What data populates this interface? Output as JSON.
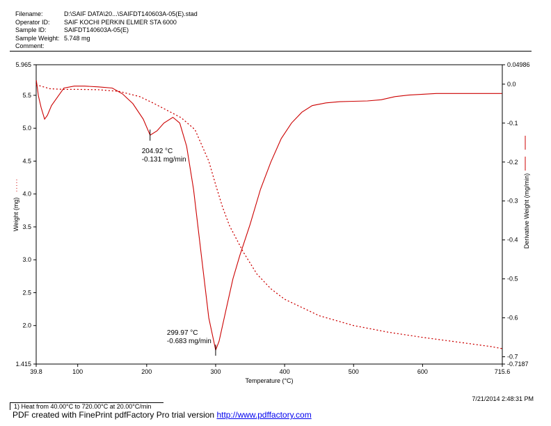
{
  "header": {
    "rows": [
      {
        "key": "Filename:",
        "value": "D:\\SAIF DATA\\20...\\SAIFDT140603A-05(E).stad"
      },
      {
        "key": "Operator ID:",
        "value": "SAIF KOCHI  PERKIN ELMER STA 6000"
      },
      {
        "key": "Sample ID:",
        "value": "SAIFDT140603A-05(E)"
      },
      {
        "key": "Sample Weight:",
        "value": "5.748 mg"
      },
      {
        "key": "Comment:",
        "value": ""
      }
    ]
  },
  "chart_data": {
    "type": "line",
    "xlabel": "Temperature (°C)",
    "ylabel_left": "Weight (mg)",
    "ylabel_right": "Derivative Weight (mg/min)",
    "xlim": [
      39.8,
      715.6
    ],
    "ylim_left": [
      1.415,
      5.965
    ],
    "ylim_right": [
      -0.7187,
      0.04986
    ],
    "x_ticks": [
      {
        "v": 39.8,
        "label": "39.8"
      },
      {
        "v": 100,
        "label": "100"
      },
      {
        "v": 200,
        "label": "200"
      },
      {
        "v": 300,
        "label": "300"
      },
      {
        "v": 400,
        "label": "400"
      },
      {
        "v": 500,
        "label": "500"
      },
      {
        "v": 600,
        "label": "600"
      },
      {
        "v": 715.6,
        "label": "715.6"
      }
    ],
    "y_left_ticks": [
      {
        "v": 5.965,
        "label": "5.965"
      },
      {
        "v": 5.5,
        "label": "5.5"
      },
      {
        "v": 5.0,
        "label": "5.0"
      },
      {
        "v": 4.5,
        "label": "4.5"
      },
      {
        "v": 4.0,
        "label": "4.0"
      },
      {
        "v": 3.5,
        "label": "3.5"
      },
      {
        "v": 3.0,
        "label": "3.0"
      },
      {
        "v": 2.5,
        "label": "2.5"
      },
      {
        "v": 2.0,
        "label": "2.0"
      },
      {
        "v": 1.415,
        "label": "1.415"
      }
    ],
    "y_right_ticks": [
      {
        "v": 0.04986,
        "label": "0.04986"
      },
      {
        "v": 0.0,
        "label": "0.0"
      },
      {
        "v": -0.1,
        "label": "-0.1"
      },
      {
        "v": -0.2,
        "label": "-0.2"
      },
      {
        "v": -0.3,
        "label": "-0.3"
      },
      {
        "v": -0.4,
        "label": "-0.4"
      },
      {
        "v": -0.5,
        "label": "-0.5"
      },
      {
        "v": -0.6,
        "label": "-0.6"
      },
      {
        "v": -0.7,
        "label": "-0.7"
      },
      {
        "v": -0.7187,
        "label": "-0.7187"
      }
    ],
    "series": [
      {
        "axis": "left",
        "style": "dotted",
        "color": "#cc0000",
        "points": [
          [
            40,
            5.66
          ],
          [
            60,
            5.6
          ],
          [
            80,
            5.59
          ],
          [
            100,
            5.59
          ],
          [
            130,
            5.585
          ],
          [
            160,
            5.56
          ],
          [
            190,
            5.48
          ],
          [
            210,
            5.38
          ],
          [
            230,
            5.27
          ],
          [
            250,
            5.16
          ],
          [
            270,
            4.98
          ],
          [
            290,
            4.5
          ],
          [
            300,
            4.14
          ],
          [
            310,
            3.8
          ],
          [
            320,
            3.52
          ],
          [
            340,
            3.12
          ],
          [
            360,
            2.78
          ],
          [
            380,
            2.56
          ],
          [
            400,
            2.4
          ],
          [
            450,
            2.15
          ],
          [
            500,
            2.0
          ],
          [
            550,
            1.9
          ],
          [
            600,
            1.82
          ],
          [
            650,
            1.75
          ],
          [
            700,
            1.68
          ],
          [
            715,
            1.65
          ]
        ]
      },
      {
        "axis": "right",
        "style": "solid",
        "color": "#cc0000",
        "points": [
          [
            40,
            0.01
          ],
          [
            43,
            -0.03
          ],
          [
            47,
            -0.06
          ],
          [
            52,
            -0.09
          ],
          [
            56,
            -0.08
          ],
          [
            62,
            -0.055
          ],
          [
            72,
            -0.03
          ],
          [
            80,
            -0.01
          ],
          [
            95,
            -0.005
          ],
          [
            110,
            -0.005
          ],
          [
            130,
            -0.007
          ],
          [
            150,
            -0.01
          ],
          [
            165,
            -0.025
          ],
          [
            180,
            -0.05
          ],
          [
            195,
            -0.09
          ],
          [
            205,
            -0.131
          ],
          [
            215,
            -0.12
          ],
          [
            225,
            -0.1
          ],
          [
            238,
            -0.085
          ],
          [
            248,
            -0.1
          ],
          [
            258,
            -0.16
          ],
          [
            268,
            -0.27
          ],
          [
            280,
            -0.45
          ],
          [
            290,
            -0.6
          ],
          [
            300,
            -0.683
          ],
          [
            305,
            -0.66
          ],
          [
            315,
            -0.58
          ],
          [
            325,
            -0.5
          ],
          [
            335,
            -0.44
          ],
          [
            350,
            -0.36
          ],
          [
            365,
            -0.27
          ],
          [
            380,
            -0.2
          ],
          [
            395,
            -0.14
          ],
          [
            410,
            -0.1
          ],
          [
            425,
            -0.072
          ],
          [
            440,
            -0.055
          ],
          [
            460,
            -0.048
          ],
          [
            480,
            -0.045
          ],
          [
            500,
            -0.044
          ],
          [
            520,
            -0.043
          ],
          [
            540,
            -0.04
          ],
          [
            560,
            -0.032
          ],
          [
            580,
            -0.028
          ],
          [
            600,
            -0.026
          ],
          [
            620,
            -0.024
          ],
          [
            650,
            -0.024
          ],
          [
            680,
            -0.024
          ],
          [
            715,
            -0.024
          ]
        ]
      }
    ],
    "annotations": [
      {
        "x": 204.92,
        "y": -0.131,
        "line1": "204.92 °C",
        "line2": "-0.131 mg/min"
      },
      {
        "x": 299.97,
        "y": -0.683,
        "line1": "299.97 °C",
        "line2": "-0.683 mg/min"
      }
    ]
  },
  "footer": {
    "timestamp": "7/21/2014 2:48:31 PM",
    "method": "1)  Heat from 40.00°C to 720.00°C at 20.00°C/min",
    "pdf_text": "PDF created with FinePrint pdfFactory Pro trial version ",
    "pdf_link": "http://www.pdffactory.com"
  }
}
